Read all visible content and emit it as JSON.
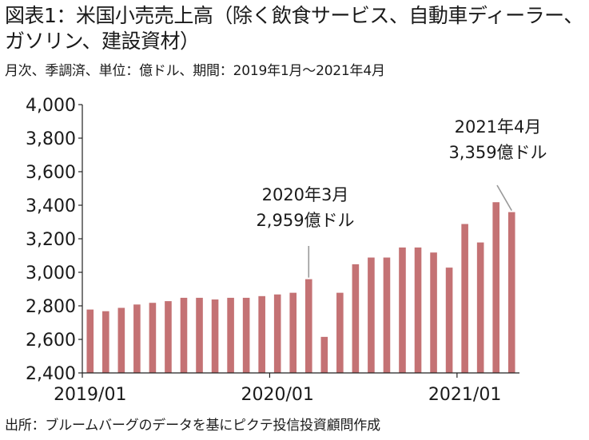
{
  "title": "図表1：米国小売売上高（除く飲食サービス、自動車ディーラー、ガソリン、建設資材）",
  "subtitle": "月次、季調済、単位：億ドル、期間：2019年1月～2021年4月",
  "source": "出所：ブルームバーグのデータを基にピクテ投信投資顧問作成",
  "colors": {
    "bar": "#c47274",
    "axis": "#222222",
    "callout": "#999999"
  },
  "chart_data": {
    "type": "bar",
    "ylim": [
      2400,
      4000
    ],
    "yticks": [
      "2,400",
      "2,600",
      "2,800",
      "3,000",
      "3,200",
      "3,400",
      "3,600",
      "3,800",
      "4,000"
    ],
    "ytick_values": [
      2400,
      2600,
      2800,
      3000,
      3200,
      3400,
      3600,
      3800,
      4000
    ],
    "xtick_labels": [
      {
        "index": 0,
        "label": "2019/01"
      },
      {
        "index": 12,
        "label": "2020/01"
      },
      {
        "index": 24,
        "label": "2021/01"
      }
    ],
    "categories": [
      "2019/01",
      "2019/02",
      "2019/03",
      "2019/04",
      "2019/05",
      "2019/06",
      "2019/07",
      "2019/08",
      "2019/09",
      "2019/10",
      "2019/11",
      "2019/12",
      "2020/01",
      "2020/02",
      "2020/03",
      "2020/04",
      "2020/05",
      "2020/06",
      "2020/07",
      "2020/08",
      "2020/09",
      "2020/10",
      "2020/11",
      "2020/12",
      "2021/01",
      "2021/02",
      "2021/03",
      "2021/04"
    ],
    "values": [
      2778,
      2768,
      2788,
      2808,
      2818,
      2828,
      2848,
      2848,
      2838,
      2848,
      2848,
      2858,
      2868,
      2878,
      2959,
      2615,
      2878,
      3048,
      3088,
      3088,
      3148,
      3148,
      3118,
      3028,
      3288,
      3178,
      3418,
      3359
    ],
    "annotations": [
      {
        "index": 14,
        "line1": "2020年3月",
        "line2": "2,959億ドル"
      },
      {
        "index": 27,
        "line1": "2021年4月",
        "line2": "3,359億ドル"
      }
    ],
    "grid": false,
    "legend": "none"
  }
}
